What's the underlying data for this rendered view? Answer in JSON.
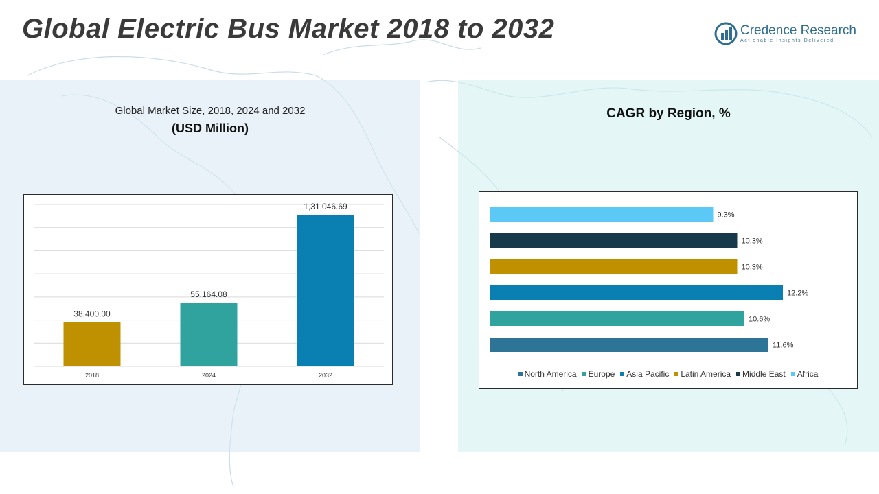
{
  "title": "Global Electric Bus Market 2018 to 2032",
  "brand": {
    "name": "Credence Research",
    "tagline": "Actionable Insights Delivered",
    "color": "#2f6d91"
  },
  "left_panel": {
    "subtitle": "Global Market Size, 2018, 2024 and 2032",
    "unit": "(USD Million)"
  },
  "right_panel": {
    "title": "CAGR by Region, %"
  },
  "chart_data": [
    {
      "type": "bar",
      "title": "Global Market Size, 2018, 2024 and 2032",
      "ylabel": "(USD Million)",
      "categories": [
        "2018",
        "2024",
        "2032"
      ],
      "values": [
        38400.0,
        55164.08,
        131046.69
      ],
      "labels": [
        "38,400.00",
        "55,164.08",
        "1,31,046.69"
      ],
      "colors": [
        "#bf9000",
        "#31a39f",
        "#0a7fb2"
      ],
      "ylim": [
        0,
        140000
      ],
      "grid": true
    },
    {
      "type": "bar",
      "orientation": "horizontal",
      "title": "CAGR by Region, %",
      "categories": [
        "Africa",
        "Middle East",
        "Latin America",
        "Asia Pacific",
        "Europe",
        "North America"
      ],
      "values": [
        9.3,
        10.3,
        10.3,
        12.2,
        10.6,
        11.6
      ],
      "labels": [
        "9.3%",
        "10.3%",
        "10.3%",
        "12.2%",
        "10.6%",
        "11.6%"
      ],
      "colors": [
        "#5bc8f5",
        "#173a4a",
        "#bf9000",
        "#0a7fb2",
        "#31a39f",
        "#2e7496"
      ],
      "xlim": [
        0,
        13
      ],
      "legend": [
        {
          "name": "North America",
          "color": "#2e7496"
        },
        {
          "name": "Europe",
          "color": "#31a39f"
        },
        {
          "name": "Asia Pacific",
          "color": "#0a7fb2"
        },
        {
          "name": "Latin America",
          "color": "#bf9000"
        },
        {
          "name": "Middle East",
          "color": "#173a4a"
        },
        {
          "name": "Africa",
          "color": "#5bc8f5"
        }
      ],
      "legend_position": "bottom"
    }
  ]
}
